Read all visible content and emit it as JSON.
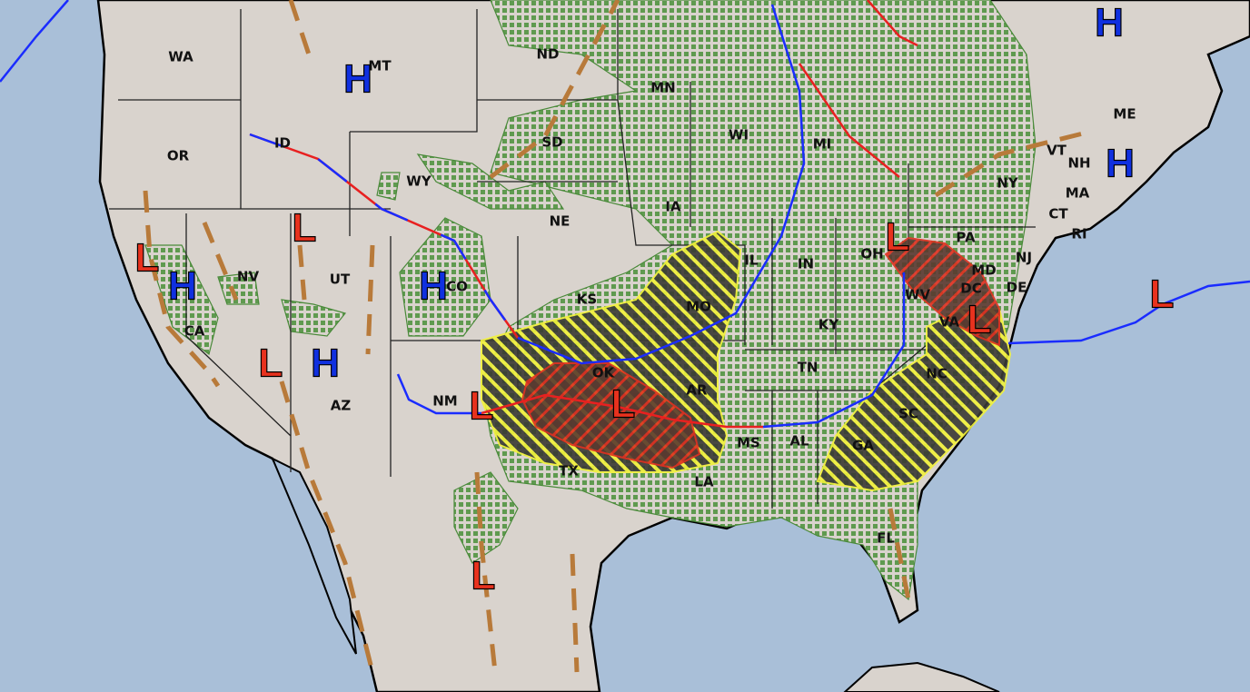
{
  "map": {
    "colors": {
      "ocean": "#a9bfd8",
      "land": "#d9d3cd",
      "high": "#1030e0",
      "low": "#e8321e",
      "cold_front": "#1a2cff",
      "warm_front": "#e82020",
      "trough": "#b87a3a",
      "precip": "#5f9a4f",
      "severe_slight": "#f2f23a",
      "severe_enhanced": "#e03020"
    },
    "states": [
      "WA",
      "MT",
      "ND",
      "MN",
      "OR",
      "ID",
      "WY",
      "SD",
      "WI",
      "MI",
      "NY",
      "VT",
      "NH",
      "ME",
      "MA",
      "CT",
      "RI",
      "NE",
      "IA",
      "NV",
      "UT",
      "CO",
      "KS",
      "MO",
      "IL",
      "IN",
      "OH",
      "PA",
      "NJ",
      "MD",
      "DE",
      "DC",
      "WV",
      "VA",
      "KY",
      "CA",
      "AZ",
      "NM",
      "OK",
      "AR",
      "TN",
      "NC",
      "SC",
      "GA",
      "AL",
      "MS",
      "TX",
      "LA",
      "FL"
    ],
    "pressure_centers": [
      {
        "type": "H",
        "label": "H"
      },
      {
        "type": "H",
        "label": "H"
      },
      {
        "type": "H",
        "label": "H"
      },
      {
        "type": "H",
        "label": "H"
      },
      {
        "type": "H",
        "label": "H"
      },
      {
        "type": "H",
        "label": "H"
      },
      {
        "type": "L",
        "label": "L"
      },
      {
        "type": "L",
        "label": "L"
      },
      {
        "type": "L",
        "label": "L"
      },
      {
        "type": "L",
        "label": "L"
      },
      {
        "type": "L",
        "label": "L"
      },
      {
        "type": "L",
        "label": "L"
      },
      {
        "type": "L",
        "label": "L"
      },
      {
        "type": "L",
        "label": "L"
      },
      {
        "type": "L",
        "label": "L"
      }
    ],
    "front_types": [
      "cold",
      "stationary",
      "warm",
      "trough"
    ]
  }
}
